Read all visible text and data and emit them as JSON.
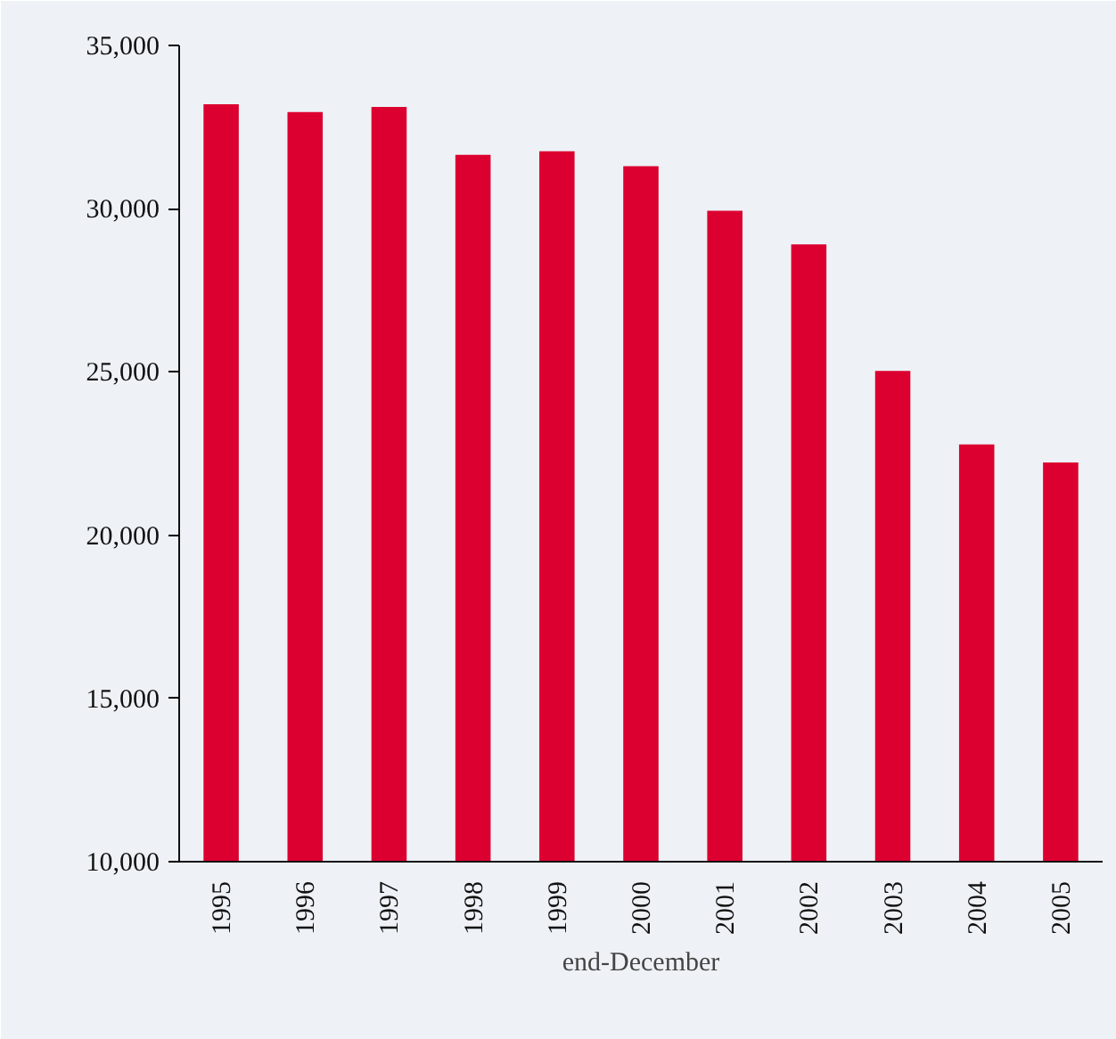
{
  "chart_data": {
    "type": "bar",
    "xlabel": "end-December",
    "categories": [
      "1995",
      "1996",
      "1997",
      "1998",
      "1999",
      "2000",
      "2001",
      "2002",
      "2003",
      "2004",
      "2005"
    ],
    "values": [
      33200,
      32960,
      33120,
      31650,
      31760,
      31300,
      29940,
      28910,
      25030,
      22780,
      22230
    ],
    "color": "#dc0030",
    "ylim": [
      10000,
      35000
    ],
    "yticks": [
      {
        "value": 10000,
        "label": "10,000"
      },
      {
        "value": 15000,
        "label": "15,000"
      },
      {
        "value": 20000,
        "label": "20,000"
      },
      {
        "value": 25000,
        "label": "25,000"
      },
      {
        "value": 30000,
        "label": "30,000"
      },
      {
        "value": 35000,
        "label": "35,000"
      }
    ],
    "grid": false
  }
}
